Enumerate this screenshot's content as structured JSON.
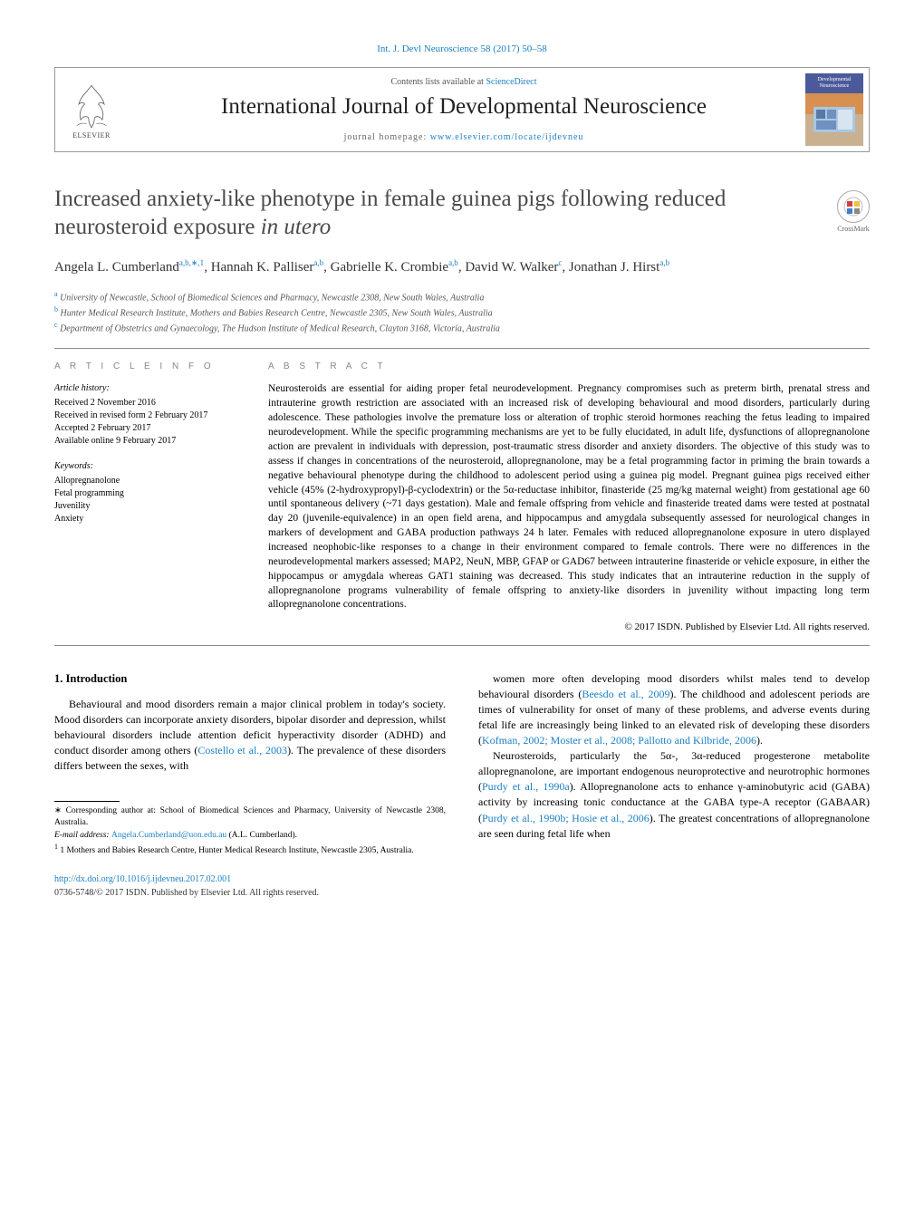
{
  "top_link": "Int. J. Devl Neuroscience 58 (2017) 50–58",
  "header": {
    "contents_prefix": "Contents lists available at ",
    "contents_link": "ScienceDirect",
    "journal_name": "International Journal of Developmental Neuroscience",
    "homepage_prefix": "journal homepage: ",
    "homepage_link": "www.elsevier.com/locate/ijdevneu",
    "elsevier_label": "ELSEVIER",
    "cover_title": "Developmental Neuroscience"
  },
  "crossmark": "CrossMark",
  "title_pre": "Increased anxiety-like phenotype in female guinea pigs following reduced neurosteroid exposure ",
  "title_em": "in utero",
  "authors": [
    {
      "name": "Angela L. Cumberland",
      "sup": "a,b,∗,1"
    },
    {
      "name": "Hannah K. Palliser",
      "sup": "a,b"
    },
    {
      "name": "Gabrielle K. Crombie",
      "sup": "a,b"
    },
    {
      "name": "David W. Walker",
      "sup": "c"
    },
    {
      "name": "Jonathan J. Hirst",
      "sup": "a,b"
    }
  ],
  "affiliations": [
    {
      "sup": "a",
      "text": "University of Newcastle, School of Biomedical Sciences and Pharmacy, Newcastle 2308, New South Wales, Australia"
    },
    {
      "sup": "b",
      "text": "Hunter Medical Research Institute, Mothers and Babies Research Centre, Newcastle 2305, New South Wales, Australia"
    },
    {
      "sup": "c",
      "text": "Department of Obstetrics and Gynaecology, The Hudson Institute of Medical Research, Clayton 3168, Victoria, Australia"
    }
  ],
  "info": {
    "heading": "A R T I C L E   I N F O",
    "history_label": "Article history:",
    "history": [
      "Received 2 November 2016",
      "Received in revised form 2 February 2017",
      "Accepted 2 February 2017",
      "Available online 9 February 2017"
    ],
    "keywords_label": "Keywords:",
    "keywords": [
      "Allopregnanolone",
      "Fetal programming",
      "Juvenility",
      "Anxiety"
    ]
  },
  "abstract": {
    "heading": "A B S T R A C T",
    "text": "Neurosteroids are essential for aiding proper fetal neurodevelopment. Pregnancy compromises such as preterm birth, prenatal stress and intrauterine growth restriction are associated with an increased risk of developing behavioural and mood disorders, particularly during adolescence. These pathologies involve the premature loss or alteration of trophic steroid hormones reaching the fetus leading to impaired neurodevelopment. While the specific programming mechanisms are yet to be fully elucidated, in adult life, dysfunctions of allopregnanolone action are prevalent in individuals with depression, post-traumatic stress disorder and anxiety disorders. The objective of this study was to assess if changes in concentrations of the neurosteroid, allopregnanolone, may be a fetal programming factor in priming the brain towards a negative behavioural phenotype during the childhood to adolescent period using a guinea pig model. Pregnant guinea pigs received either vehicle (45% (2-hydroxypropyl)-β-cyclodextrin) or the 5α-reductase inhibitor, finasteride (25 mg/kg maternal weight) from gestational age 60 until spontaneous delivery (~71 days gestation). Male and female offspring from vehicle and finasteride treated dams were tested at postnatal day 20 (juvenile-equivalence) in an open field arena, and hippocampus and amygdala subsequently assessed for neurological changes in markers of development and GABA production pathways 24 h later. Females with reduced allopregnanolone exposure in utero displayed increased neophobic-like responses to a change in their environment compared to female controls. There were no differences in the neurodevelopmental markers assessed; MAP2, NeuN, MBP, GFAP or GAD67 between intrauterine finasteride or vehicle exposure, in either the hippocampus or amygdala whereas GAT1 staining was decreased. This study indicates that an intrauterine reduction in the supply of allopregnanolone programs vulnerability of female offspring to anxiety-like disorders in juvenility without impacting long term allopregnanolone concentrations.",
    "copyright": "© 2017 ISDN. Published by Elsevier Ltd. All rights reserved."
  },
  "section1_heading": "1. Introduction",
  "body": {
    "left_p1_a": "Behavioural and mood disorders remain a major clinical problem in today's society. Mood disorders can incorporate anxiety disorders, bipolar disorder and depression, whilst behavioural disorders include attention deficit hyperactivity disorder (ADHD) and conduct disorder among others (",
    "left_p1_ref1": "Costello et al., 2003",
    "left_p1_b": "). The prevalence of these disorders differs between the sexes, with",
    "right_p1_a": "women more often developing mood disorders whilst males tend to develop behavioural disorders (",
    "right_p1_ref1": "Beesdo et al., 2009",
    "right_p1_b": "). The childhood and adolescent periods are times of vulnerability for onset of many of these problems, and adverse events during fetal life are increasingly being linked to an elevated risk of developing these disorders (",
    "right_p1_ref2": "Kofman, 2002; Moster et al., 2008; Pallotto and Kilbride, 2006",
    "right_p1_c": ").",
    "right_p2_a": "Neurosteroids, particularly the 5α-, 3α-reduced progesterone metabolite allopregnanolone, are important endogenous neuroprotective and neurotrophic hormones (",
    "right_p2_ref1": "Purdy et al., 1990a",
    "right_p2_b": "). Allopregnanolone acts to enhance γ-aminobutyric acid (GABA) activity by increasing tonic conductance at the GABA type-A receptor (GABAAR) (",
    "right_p2_ref2": "Purdy et al., 1990b; Hosie et al., 2006",
    "right_p2_c": "). The greatest concentrations of allopregnanolone are seen during fetal life when"
  },
  "footer": {
    "corr": "∗ Corresponding author at: School of Biomedical Sciences and Pharmacy, University of Newcastle 2308, Australia.",
    "email_label": "E-mail address: ",
    "email": "Angela.Cumberland@uon.edu.au",
    "email_suffix": " (A.L. Cumberland).",
    "note1": "1 Mothers and Babies Research Centre, Hunter Medical Research Institute, Newcastle 2305, Australia.",
    "doi": "http://dx.doi.org/10.1016/j.ijdevneu.2017.02.001",
    "copyright": "0736-5748/© 2017 ISDN. Published by Elsevier Ltd. All rights reserved."
  },
  "colors": {
    "link": "#1a7fc4",
    "title_gray": "#4a4a4a",
    "rule": "#888888"
  }
}
